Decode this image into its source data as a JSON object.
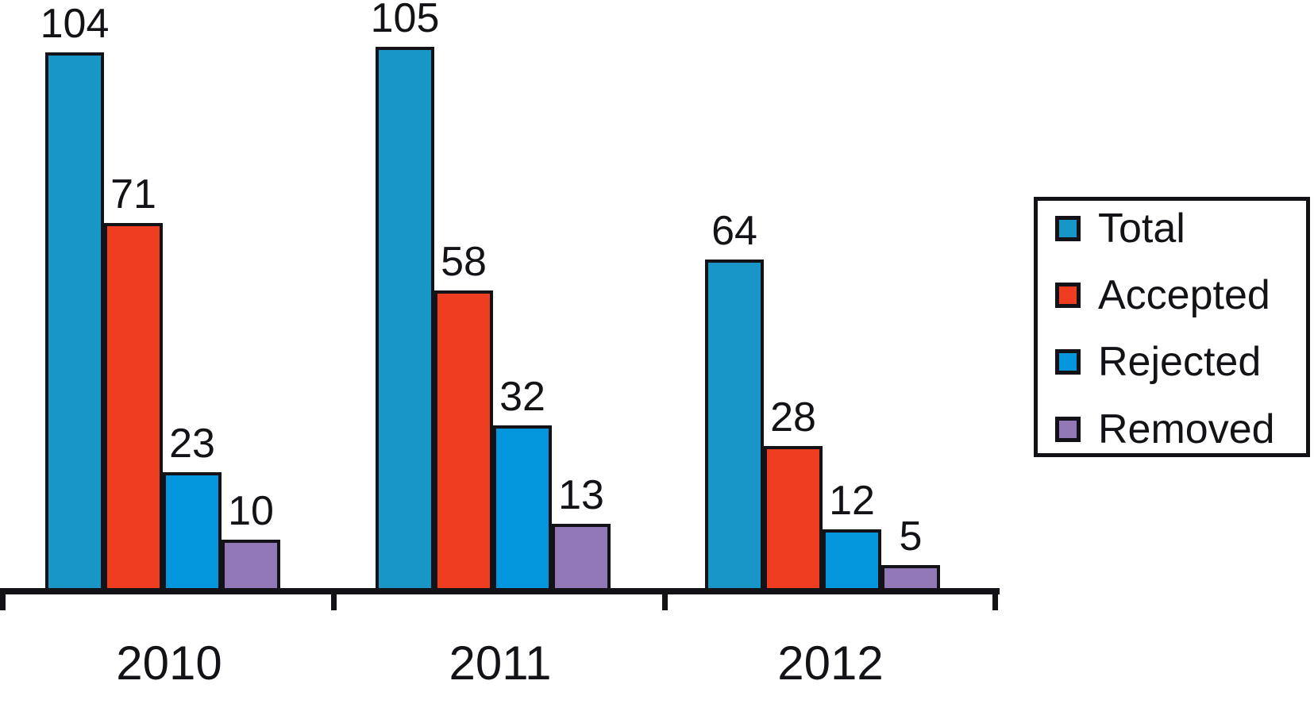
{
  "chart_data": {
    "type": "bar",
    "title": "",
    "categories": [
      "2010",
      "2011",
      "2012"
    ],
    "series": [
      {
        "name": "Total",
        "color": "#1996C8",
        "values": [
          104,
          105,
          64
        ]
      },
      {
        "name": "Accepted",
        "color": "#EF3D21",
        "values": [
          71,
          58,
          28
        ]
      },
      {
        "name": "Rejected",
        "color": "#0496DC",
        "values": [
          23,
          32,
          12
        ]
      },
      {
        "name": "Removed",
        "color": "#9179B8",
        "values": [
          10,
          13,
          5
        ]
      }
    ],
    "xlabel": "",
    "ylabel": "",
    "ylim": [
      0,
      110
    ],
    "grid": false,
    "legend_position": "right",
    "value_labels": true,
    "axis_color": "#131317",
    "bar_outline_color": "#131317"
  }
}
